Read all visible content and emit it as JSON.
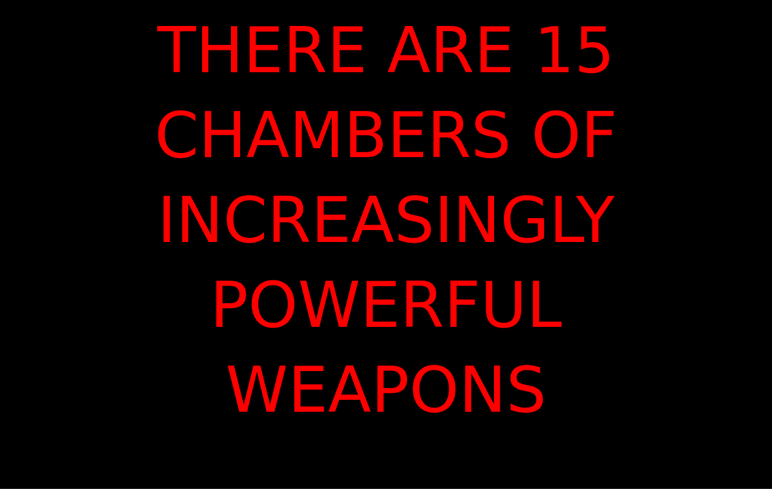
{
  "message": {
    "lines": [
      "THERE ARE 15",
      "CHAMBERS OF",
      "INCREASINGLY",
      "POWERFUL",
      "WEAPONS"
    ]
  },
  "colors": {
    "background": "#000000",
    "text": "#ff0000"
  }
}
